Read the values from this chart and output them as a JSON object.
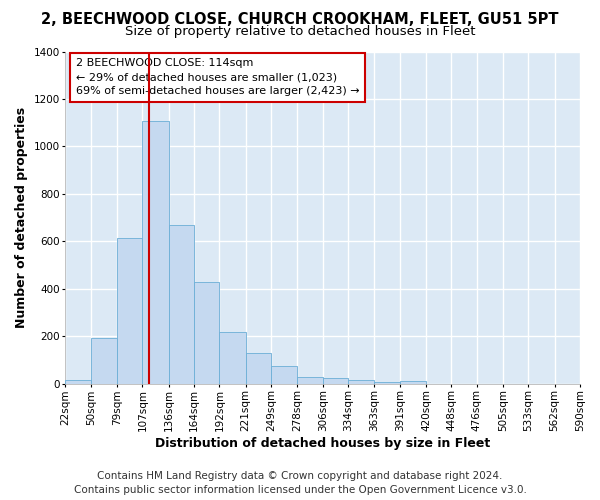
{
  "title_line1": "2, BEECHWOOD CLOSE, CHURCH CROOKHAM, FLEET, GU51 5PT",
  "title_line2": "Size of property relative to detached houses in Fleet",
  "xlabel": "Distribution of detached houses by size in Fleet",
  "ylabel": "Number of detached properties",
  "bar_values": [
    15,
    193,
    614,
    1109,
    671,
    428,
    220,
    128,
    73,
    30,
    26,
    15,
    8,
    12,
    0,
    0,
    0,
    0,
    0,
    0
  ],
  "bin_edges": [
    22,
    50,
    79,
    107,
    136,
    164,
    192,
    221,
    249,
    278,
    306,
    334,
    363,
    391,
    420,
    448,
    476,
    505,
    533,
    562,
    590
  ],
  "x_tick_labels": [
    "22sqm",
    "50sqm",
    "79sqm",
    "107sqm",
    "136sqm",
    "164sqm",
    "192sqm",
    "221sqm",
    "249sqm",
    "278sqm",
    "306sqm",
    "334sqm",
    "363sqm",
    "391sqm",
    "420sqm",
    "448sqm",
    "476sqm",
    "505sqm",
    "533sqm",
    "562sqm",
    "590sqm"
  ],
  "bar_color": "#c5d9f0",
  "bar_edgecolor": "#6baed6",
  "vline_x": 114,
  "vline_color": "#cc0000",
  "ylim": [
    0,
    1400
  ],
  "yticks": [
    0,
    200,
    400,
    600,
    800,
    1000,
    1200,
    1400
  ],
  "annotation_title": "2 BEECHWOOD CLOSE: 114sqm",
  "annotation_line2": "← 29% of detached houses are smaller (1,023)",
  "annotation_line3": "69% of semi-detached houses are larger (2,423) →",
  "annotation_box_facecolor": "#ffffff",
  "annotation_box_edgecolor": "#cc0000",
  "footer_line1": "Contains HM Land Registry data © Crown copyright and database right 2024.",
  "footer_line2": "Contains public sector information licensed under the Open Government Licence v3.0.",
  "fig_background_color": "#ffffff",
  "plot_background_color": "#dce9f5",
  "grid_color": "#ffffff",
  "title_fontsize": 10.5,
  "subtitle_fontsize": 9.5,
  "axis_label_fontsize": 9,
  "tick_fontsize": 7.5,
  "footer_fontsize": 7.5
}
